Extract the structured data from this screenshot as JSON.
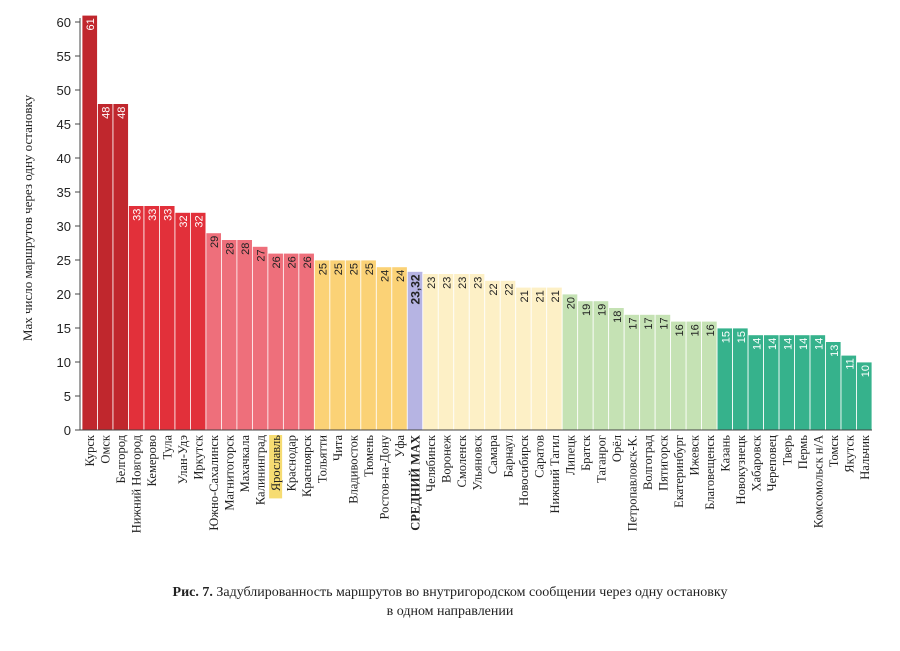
{
  "chart_data": {
    "type": "bar",
    "ylabel": "Max число маршрутов через одну остановку",
    "ylim": [
      0,
      60
    ],
    "yticks": [
      0,
      5,
      10,
      15,
      20,
      25,
      30,
      35,
      40,
      45,
      50,
      55,
      60
    ],
    "grid": false,
    "categories": [
      "Курск",
      "Омск",
      "Белгород",
      "Нижний Новгород",
      "Кемерово",
      "Тула",
      "Улан-Удэ",
      "Иркутск",
      "Южно-Сахалинск",
      "Магнитогорск",
      "Махачкала",
      "Калининград",
      "Ярославль",
      "Краснодар",
      "Красноярск",
      "Тольятти",
      "Чита",
      "Владивосток",
      "Тюмень",
      "Ростов-на-Дону",
      "Уфа",
      "СРЕДНИЙ MAX",
      "Челябинск",
      "Воронеж",
      "Смоленск",
      "Ульяновск",
      "Самара",
      "Барнаул",
      "Новосибирск",
      "Саратов",
      "Нижний Тагил",
      "Липецк",
      "Братск",
      "Таганрог",
      "Орёл",
      "Петропавловск-К.",
      "Волгоград",
      "Пятигорск",
      "Екатеринбург",
      "Ижевск",
      "Благовещенск",
      "Казань",
      "Новокузнецк",
      "Хабаровск",
      "Череповец",
      "Тверь",
      "Пермь",
      "Комсомольск н/А",
      "Томск",
      "Якутск",
      "Нальчик"
    ],
    "values": [
      61,
      48,
      48,
      33,
      33,
      33,
      32,
      32,
      29,
      28,
      28,
      27,
      26,
      26,
      26,
      25,
      25,
      25,
      25,
      24,
      24,
      23.32,
      23,
      23,
      23,
      23,
      22,
      22,
      21,
      21,
      21,
      20,
      19,
      19,
      18,
      17,
      17,
      17,
      16,
      16,
      16,
      15,
      15,
      14,
      14,
      14,
      14,
      14,
      13,
      11,
      10
    ],
    "value_labels": [
      "61",
      "48",
      "48",
      "33",
      "33",
      "33",
      "32",
      "32",
      "29",
      "28",
      "28",
      "27",
      "26",
      "26",
      "26",
      "25",
      "25",
      "25",
      "25",
      "24",
      "24",
      "23,32",
      "23",
      "23",
      "23",
      "23",
      "22",
      "22",
      "21",
      "21",
      "21",
      "20",
      "19",
      "19",
      "18",
      "17",
      "17",
      "17",
      "16",
      "16",
      "16",
      "15",
      "15",
      "14",
      "14",
      "14",
      "14",
      "14",
      "13",
      "11",
      "10"
    ],
    "bar_colors": [
      "#c0272d",
      "#c0272d",
      "#c0272d",
      "#e2303a",
      "#e2303a",
      "#e2303a",
      "#e2303a",
      "#e2303a",
      "#ee6f7b",
      "#ee6f7b",
      "#ee6f7b",
      "#ee6f7b",
      "#ee6f7b",
      "#ee6f7b",
      "#ee6f7b",
      "#fbd276",
      "#fbd276",
      "#fbd276",
      "#fbd276",
      "#fbd276",
      "#fbd276",
      "#b6b4e3",
      "#fdf0c6",
      "#fdf0c6",
      "#fdf0c6",
      "#fdf0c6",
      "#fdf0c6",
      "#fdf0c6",
      "#fdf0c6",
      "#fdf0c6",
      "#fdf0c6",
      "#c5e2b4",
      "#c5e2b4",
      "#c5e2b4",
      "#c5e2b4",
      "#c5e2b4",
      "#c5e2b4",
      "#c5e2b4",
      "#c5e2b4",
      "#c5e2b4",
      "#c5e2b4",
      "#36b28c",
      "#36b28c",
      "#36b28c",
      "#36b28c",
      "#36b28c",
      "#36b28c",
      "#36b28c",
      "#36b28c",
      "#36b28c",
      "#36b28c"
    ],
    "highlighted_categories": [
      "Ярославль"
    ],
    "bold_categories": [
      "СРЕДНИЙ MAX"
    ]
  },
  "colors": {
    "dark_red": "#c0272d",
    "red": "#e2303a",
    "pink": "#ee6f7b",
    "orange": "#fbd276",
    "average": "#b6b4e3",
    "cream": "#fdf0c6",
    "light_green": "#c5e2b4",
    "teal": "#36b28c",
    "label_highlight": "#f6dc72"
  },
  "caption": {
    "prefix": "Рис. 7.",
    "text": "Задублированность маршрутов во внутригородском сообщении через одну остановку",
    "line2": "в одном направлении"
  }
}
